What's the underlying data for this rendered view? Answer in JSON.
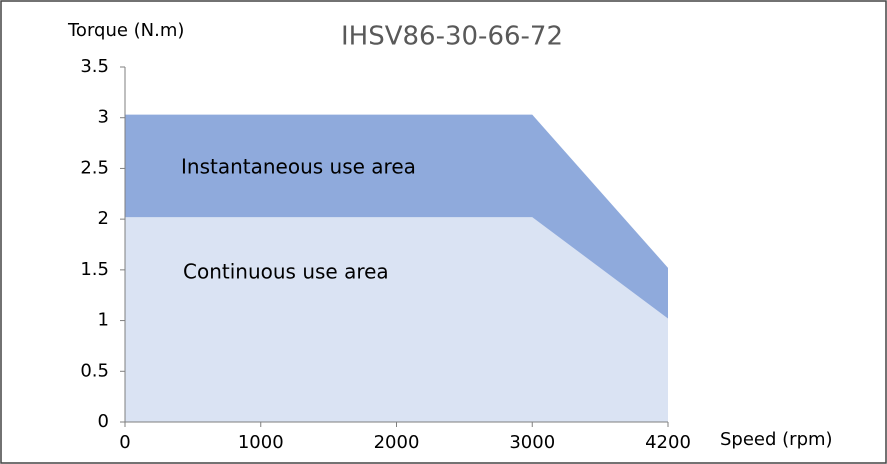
{
  "chart_data": {
    "type": "area",
    "title": "IHSV86-30-66-72",
    "y_label": "Torque (N.m)",
    "x_label": "Speed (rpm)",
    "categories": [
      "0",
      "1000",
      "2000",
      "3000",
      "4200"
    ],
    "series": [
      {
        "name": "Instantaneous use area",
        "color": "#8faadc",
        "values": [
          3.03,
          3.03,
          3.03,
          3.03,
          1.52
        ]
      },
      {
        "name": "Continuous use area",
        "color": "#dae3f3",
        "values": [
          2.02,
          2.02,
          2.02,
          2.02,
          1.02
        ]
      }
    ],
    "ylim": [
      0,
      3.5
    ],
    "yticks": [
      0,
      0.5,
      1,
      1.5,
      2,
      2.5,
      3,
      3.5
    ],
    "grid": false
  }
}
